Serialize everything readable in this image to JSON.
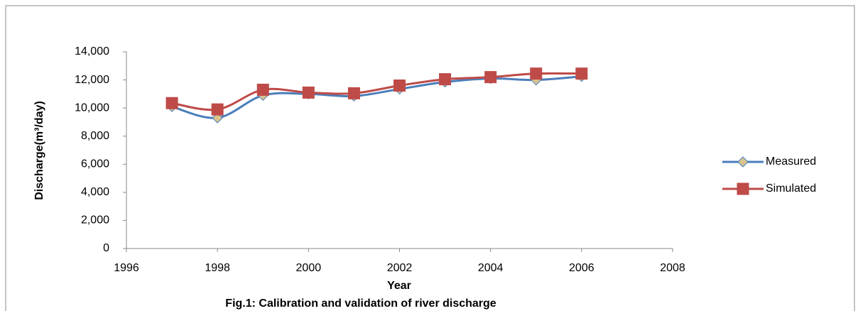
{
  "chart_data": {
    "type": "line",
    "caption": "Fig.1: Calibration and validation of river discharge",
    "x_label": "Year",
    "y_label": "Discharge(m³/day)",
    "x": [
      1997,
      1998,
      1999,
      2000,
      2001,
      2002,
      2003,
      2004,
      2005,
      2006
    ],
    "series": [
      {
        "name": "Measured",
        "color": "#4a7ebb",
        "marker": "diamond",
        "marker_color": "#d9c48f",
        "values": [
          10100,
          9300,
          10900,
          11000,
          10850,
          11350,
          11850,
          12100,
          12000,
          12250
        ]
      },
      {
        "name": "Simulated",
        "color": "#be4b48",
        "marker": "square",
        "marker_color": "#be4b48",
        "values": [
          10350,
          9900,
          11300,
          11100,
          11050,
          11600,
          12050,
          12200,
          12450,
          12450
        ]
      }
    ],
    "xlim": [
      1996,
      2008
    ],
    "xticks": [
      1996,
      1998,
      2000,
      2002,
      2004,
      2006,
      2008
    ],
    "ylim": [
      0,
      14000
    ],
    "yticks": [
      0,
      {
        "value": 2000,
        "label": "2,000"
      },
      {
        "value": 4000,
        "label": "4,000"
      },
      {
        "value": 6000,
        "label": "6,000"
      },
      {
        "value": 8000,
        "label": "8,000"
      },
      {
        "value": 10000,
        "label": "10,000"
      },
      {
        "value": 12000,
        "label": "12,000"
      },
      {
        "value": 14000,
        "label": "14,000"
      }
    ],
    "grid": false,
    "smooth": true,
    "legend": "right"
  }
}
